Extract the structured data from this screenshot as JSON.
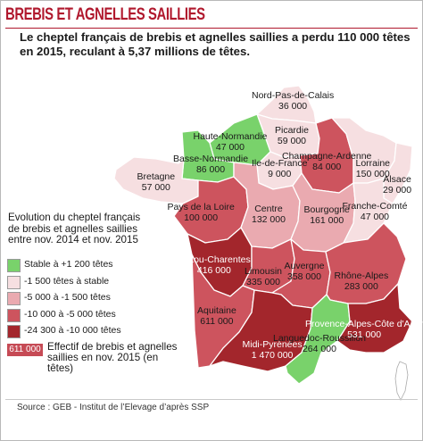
{
  "title": "BREBIS ET AGNELLES SAILLIES",
  "lead": "Le cheptel français de brebis et agnelles saillies a perdu 110 000 têtes en 2015, reculant à 5,37 millions de têtes.",
  "colors": {
    "class1": "#79d26b",
    "class2": "#f6dfe1",
    "class3": "#eaaab0",
    "class4": "#cd545e",
    "class5": "#a3262c",
    "title": "#b0182d",
    "border": "#ffffff"
  },
  "legend": {
    "title": "Evolution du cheptel français de brebis et agnelles saillies entre nov. 2014 et nov. 2015",
    "items": [
      {
        "label": "Stable à +1 200 têtes",
        "class": "class1"
      },
      {
        "label": "-1 500 têtes à stable",
        "class": "class2"
      },
      {
        "label": "-5 000 à -1 500 têtes",
        "class": "class3"
      },
      {
        "label": "-10 000 à -5 000 têtes",
        "class": "class4"
      },
      {
        "label": "-24 300 à -10 000 têtes",
        "class": "class5"
      }
    ],
    "effectif_example": "611 000",
    "effectif_text": "Effectif de brebis et agnelles saillies en nov. 2015 (en têtes)"
  },
  "regions": [
    {
      "id": "nord-pas-de-calais",
      "name": "Nord-Pas-de-Calais",
      "value": "36 000",
      "class": "class2"
    },
    {
      "id": "picardie",
      "name": "Picardie",
      "value": "59 000",
      "class": "class2"
    },
    {
      "id": "haute-normandie",
      "name": "Haute-Normandie",
      "value": "47 000",
      "class": "class1"
    },
    {
      "id": "basse-normandie",
      "name": "Basse-Normandie",
      "value": "86 000",
      "class": "class1"
    },
    {
      "id": "ile-de-france",
      "name": "Ile-de-France",
      "value": "9 000",
      "class": "class2"
    },
    {
      "id": "champagne-ardenne",
      "name": "Champagne-Ardenne",
      "value": "84 000",
      "class": "class4"
    },
    {
      "id": "lorraine",
      "name": "Lorraine",
      "value": "150 000",
      "class": "class2"
    },
    {
      "id": "alsace",
      "name": "Alsace",
      "value": "29 000",
      "class": "class2"
    },
    {
      "id": "bretagne",
      "name": "Bretagne",
      "value": "57 000",
      "class": "class2"
    },
    {
      "id": "pays-de-la-loire",
      "name": "Pays de la Loire",
      "value": "100 000",
      "class": "class4"
    },
    {
      "id": "centre",
      "name": "Centre",
      "value": "132 000",
      "class": "class3"
    },
    {
      "id": "bourgogne",
      "name": "Bourgogne",
      "value": "161 000",
      "class": "class3"
    },
    {
      "id": "franche-comte",
      "name": "Franche-Comté",
      "value": "47 000",
      "class": "class2"
    },
    {
      "id": "poitou-charentes",
      "name": "Poitou-Charentes",
      "value": "416 000",
      "class": "class5"
    },
    {
      "id": "limousin",
      "name": "Limousin",
      "value": "335 000",
      "class": "class4"
    },
    {
      "id": "auvergne",
      "name": "Auvergne",
      "value": "358 000",
      "class": "class4"
    },
    {
      "id": "rhone-alpes",
      "name": "Rhône-Alpes",
      "value": "283 000",
      "class": "class4"
    },
    {
      "id": "aquitaine",
      "name": "Aquitaine",
      "value": "611 000",
      "class": "class4"
    },
    {
      "id": "midi-pyrenees",
      "name": "Midi-Pyrénées",
      "value": "1 470 000",
      "class": "class5"
    },
    {
      "id": "languedoc-roussillon",
      "name": "Languedoc-Roussillon",
      "value": "264 000",
      "class": "class1"
    },
    {
      "id": "provence-alpes-cote-dazur",
      "name": "Provence-Alpes-Côte d'Azur",
      "value": "531 000",
      "class": "class5"
    }
  ],
  "source": "Source : GEB - Institut de l’Elevage d’après SSP"
}
